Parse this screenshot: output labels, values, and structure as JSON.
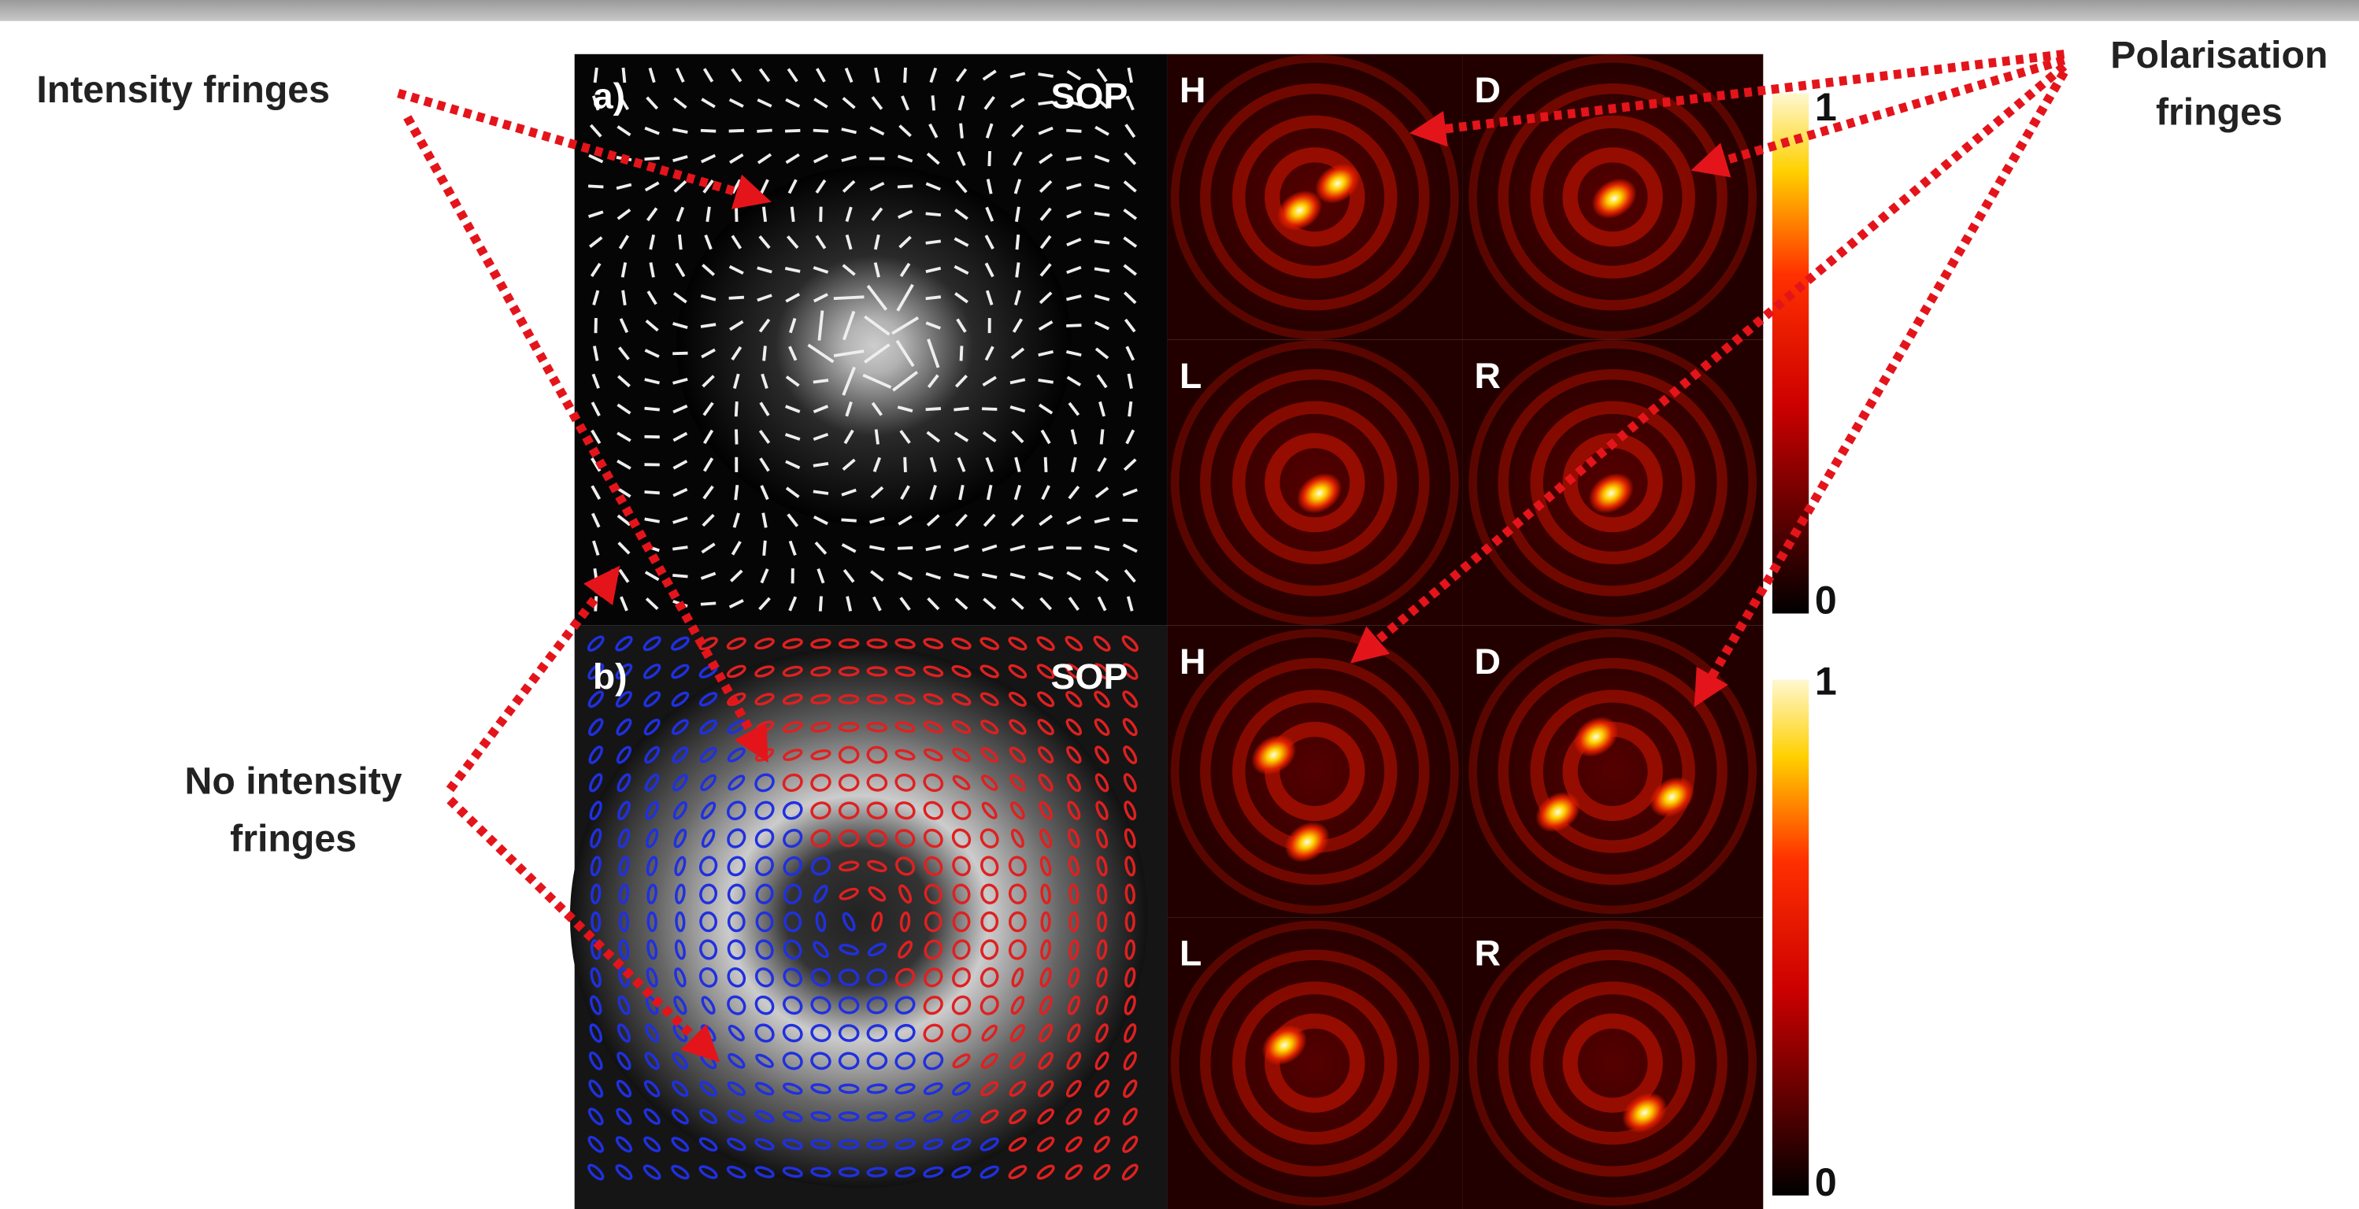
{
  "annotations": {
    "intensity_fringes": "Intensity fringes",
    "polarisation_fringes": [
      "Polarisation",
      "fringes"
    ],
    "no_intensity_fringes": [
      "No intensity",
      "fringes"
    ]
  },
  "panel_a": {
    "label": "a)",
    "sop": "SOP"
  },
  "panel_b": {
    "label": "b)",
    "sop": "SOP"
  },
  "top_grid": [
    "H",
    "D",
    "L",
    "R"
  ],
  "bottom_grid": [
    "H",
    "D",
    "L",
    "R"
  ],
  "colorbar_top": {
    "max": "1",
    "min": "0"
  },
  "colorbar_bottom": {
    "max": "1",
    "min": "0"
  }
}
